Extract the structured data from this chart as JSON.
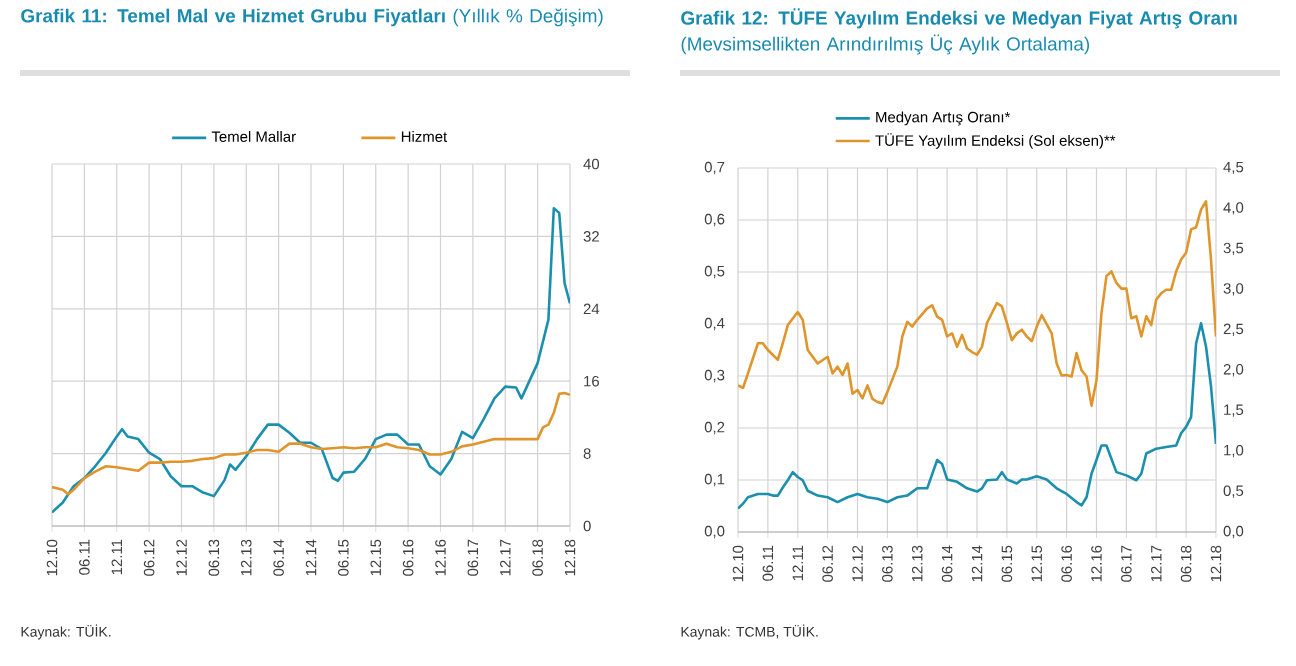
{
  "chart_data": [
    {
      "type": "line",
      "title": "**Grafik 11: Temel Mal ve Hizmet Grubu Fiyatları** (Yıllık % Değişim)",
      "legend": "top",
      "grid": true,
      "line_style": "solid",
      "xlim": [
        "2010-12",
        "2018-12"
      ],
      "xticks": [
        {
          "value": "2010-12",
          "label": "12.10"
        },
        {
          "value": "2011-06",
          "label": "06.11"
        },
        {
          "value": "2011-12",
          "label": "12.11"
        },
        {
          "value": "2012-06",
          "label": "06.12"
        },
        {
          "value": "2012-12",
          "label": "12.12"
        },
        {
          "value": "2013-06",
          "label": "06.13"
        },
        {
          "value": "2013-12",
          "label": "12.13"
        },
        {
          "value": "2014-06",
          "label": "06.14"
        },
        {
          "value": "2014-12",
          "label": "12.14"
        },
        {
          "value": "2015-06",
          "label": "06.15"
        },
        {
          "value": "2015-12",
          "label": "12.15"
        },
        {
          "value": "2016-06",
          "label": "06.16"
        },
        {
          "value": "2016-12",
          "label": "12.16"
        },
        {
          "value": "2017-06",
          "label": "06.17"
        },
        {
          "value": "2017-12",
          "label": "12.17"
        },
        {
          "value": "2018-06",
          "label": "06.18"
        },
        {
          "value": "2018-12",
          "label": "12.18"
        }
      ],
      "ylim": [
        0,
        40
      ],
      "yticks": [
        0,
        8,
        16,
        24,
        32,
        40
      ],
      "series": [
        {
          "name": "Temel Mallar",
          "color": "#1b8fae",
          "x": [
            "2010-12",
            "2011-02",
            "2011-04",
            "2011-06",
            "2011-08",
            "2011-10",
            "2011-12",
            "2012-01",
            "2012-02",
            "2012-04",
            "2012-06",
            "2012-08",
            "2012-10",
            "2012-12",
            "2013-02",
            "2013-04",
            "2013-06",
            "2013-08",
            "2013-09",
            "2013-10",
            "2013-12",
            "2014-02",
            "2014-04",
            "2014-06",
            "2014-08",
            "2014-10",
            "2014-12",
            "2015-02",
            "2015-04",
            "2015-05",
            "2015-06",
            "2015-08",
            "2015-10",
            "2015-12",
            "2016-02",
            "2016-04",
            "2016-06",
            "2016-08",
            "2016-10",
            "2016-12",
            "2017-02",
            "2017-04",
            "2017-06",
            "2017-08",
            "2017-10",
            "2017-12",
            "2018-02",
            "2018-03",
            "2018-04",
            "2018-06",
            "2018-08",
            "2018-09",
            "2018-10",
            "2018-11",
            "2018-12"
          ],
          "values": [
            1.5,
            2.6,
            4.4,
            5.3,
            6.6,
            8.1,
            9.9,
            10.7,
            9.9,
            9.6,
            8.1,
            7.4,
            5.5,
            4.4,
            4.4,
            3.7,
            3.3,
            5.1,
            6.8,
            6.2,
            7.7,
            9.6,
            11.2,
            11.2,
            10.3,
            9.2,
            9.2,
            8.5,
            5.3,
            5.0,
            5.9,
            6.0,
            7.4,
            9.6,
            10.1,
            10.1,
            9.0,
            9.0,
            6.6,
            5.7,
            7.4,
            10.4,
            9.7,
            11.8,
            14.1,
            15.4,
            15.3,
            14.1,
            15.4,
            18.0,
            22.8,
            35.1,
            34.6,
            26.8,
            24.6
          ]
        },
        {
          "name": "Hizmet",
          "color": "#e0952c",
          "x": [
            "2010-12",
            "2011-02",
            "2011-03",
            "2011-04",
            "2011-06",
            "2011-08",
            "2011-10",
            "2011-12",
            "2012-02",
            "2012-04",
            "2012-06",
            "2012-08",
            "2012-10",
            "2012-12",
            "2013-02",
            "2013-04",
            "2013-06",
            "2013-08",
            "2013-10",
            "2013-12",
            "2014-02",
            "2014-04",
            "2014-06",
            "2014-08",
            "2014-10",
            "2014-12",
            "2015-02",
            "2015-04",
            "2015-06",
            "2015-08",
            "2015-10",
            "2015-12",
            "2016-02",
            "2016-04",
            "2016-06",
            "2016-08",
            "2016-10",
            "2016-12",
            "2017-02",
            "2017-04",
            "2017-06",
            "2017-08",
            "2017-10",
            "2017-12",
            "2018-02",
            "2018-04",
            "2018-06",
            "2018-07",
            "2018-08",
            "2018-09",
            "2018-10",
            "2018-11",
            "2018-12"
          ],
          "values": [
            4.3,
            4.0,
            3.5,
            4.0,
            5.3,
            6.0,
            6.6,
            6.5,
            6.3,
            6.1,
            7.0,
            7.0,
            7.1,
            7.1,
            7.2,
            7.4,
            7.5,
            7.9,
            7.9,
            8.1,
            8.4,
            8.4,
            8.2,
            9.1,
            9.1,
            8.7,
            8.5,
            8.6,
            8.7,
            8.6,
            8.7,
            8.7,
            9.1,
            8.7,
            8.6,
            8.4,
            7.9,
            7.9,
            8.2,
            8.8,
            9.0,
            9.3,
            9.6,
            9.6,
            9.6,
            9.6,
            9.6,
            10.9,
            11.2,
            12.5,
            14.6,
            14.7,
            14.5
          ]
        }
      ],
      "annotations": [
        "Kaynak: TÜİK."
      ]
    },
    {
      "type": "line",
      "title": "**Grafik 12: TÜFE Yayılım Endeksi ve Medyan Fiyat Artış Oranı** (Mevsimsellikten Arındırılmış Üç Aylık Ortalama)",
      "legend": "top",
      "grid": true,
      "line_style": "solid",
      "xlim": [
        "2010-12",
        "2018-12"
      ],
      "xticks": [
        {
          "value": "2010-12",
          "label": "12.10"
        },
        {
          "value": "2011-06",
          "label": "06.11"
        },
        {
          "value": "2011-12",
          "label": "12.11"
        },
        {
          "value": "2012-06",
          "label": "06.12"
        },
        {
          "value": "2012-12",
          "label": "12.12"
        },
        {
          "value": "2013-06",
          "label": "06.13"
        },
        {
          "value": "2013-12",
          "label": "12.13"
        },
        {
          "value": "2014-06",
          "label": "06.14"
        },
        {
          "value": "2014-12",
          "label": "12.14"
        },
        {
          "value": "2015-06",
          "label": "06.15"
        },
        {
          "value": "2015-12",
          "label": "12.15"
        },
        {
          "value": "2016-06",
          "label": "06.16"
        },
        {
          "value": "2016-12",
          "label": "12.16"
        },
        {
          "value": "2017-06",
          "label": "06.17"
        },
        {
          "value": "2017-12",
          "label": "12.17"
        },
        {
          "value": "2018-06",
          "label": "06.18"
        },
        {
          "value": "2018-12",
          "label": "12.18"
        }
      ],
      "ylim": [
        0,
        0.7
      ],
      "yticks": [
        {
          "value": 0,
          "label": "0,0"
        },
        {
          "value": 0.1,
          "label": "0,1"
        },
        {
          "value": 0.2,
          "label": "0,2"
        },
        {
          "value": 0.3,
          "label": "0,3"
        },
        {
          "value": 0.4,
          "label": "0,4"
        },
        {
          "value": 0.5,
          "label": "0,5"
        },
        {
          "value": 0.6,
          "label": "0,6"
        },
        {
          "value": 0.7,
          "label": "0,7"
        }
      ],
      "y2lim": [
        0,
        4.5
      ],
      "y2ticks": [
        {
          "value": 0,
          "label": "0,0"
        },
        {
          "value": 0.5,
          "label": "0,5"
        },
        {
          "value": 1,
          "label": "1,0"
        },
        {
          "value": 1.5,
          "label": "1,5"
        },
        {
          "value": 2,
          "label": "2,0"
        },
        {
          "value": 2.5,
          "label": "2,5"
        },
        {
          "value": 3,
          "label": "3,0"
        },
        {
          "value": 3.5,
          "label": "3,5"
        },
        {
          "value": 4,
          "label": "4,0"
        },
        {
          "value": 4.5,
          "label": "4,5"
        }
      ],
      "series": [
        {
          "name": "Medyan Artış Oranı*",
          "color": "#1b8fae",
          "axis": "y2",
          "x": [
            "2010-12",
            "2011-01",
            "2011-02",
            "2011-04",
            "2011-06",
            "2011-07",
            "2011-08",
            "2011-09",
            "2011-10",
            "2011-11",
            "2011-12",
            "2012-01",
            "2012-02",
            "2012-04",
            "2012-06",
            "2012-08",
            "2012-10",
            "2012-12",
            "2013-02",
            "2013-04",
            "2013-06",
            "2013-08",
            "2013-10",
            "2013-12",
            "2014-02",
            "2014-04",
            "2014-05",
            "2014-06",
            "2014-08",
            "2014-10",
            "2014-12",
            "2015-01",
            "2015-02",
            "2015-04",
            "2015-05",
            "2015-06",
            "2015-08",
            "2015-09",
            "2015-10",
            "2015-12",
            "2016-02",
            "2016-04",
            "2016-06",
            "2016-08",
            "2016-09",
            "2016-10",
            "2016-11",
            "2016-12",
            "2017-01",
            "2017-02",
            "2017-04",
            "2017-06",
            "2017-08",
            "2017-09",
            "2017-10",
            "2017-12",
            "2018-02",
            "2018-04",
            "2018-05",
            "2018-06",
            "2018-07",
            "2018-08",
            "2018-09",
            "2018-10",
            "2018-11",
            "2018-12"
          ],
          "values": [
            0.29,
            0.35,
            0.43,
            0.47,
            0.47,
            0.45,
            0.45,
            0.55,
            0.64,
            0.74,
            0.68,
            0.64,
            0.51,
            0.45,
            0.43,
            0.37,
            0.43,
            0.47,
            0.43,
            0.41,
            0.37,
            0.43,
            0.45,
            0.54,
            0.54,
            0.89,
            0.84,
            0.65,
            0.62,
            0.54,
            0.5,
            0.54,
            0.64,
            0.65,
            0.74,
            0.65,
            0.6,
            0.65,
            0.65,
            0.69,
            0.65,
            0.54,
            0.47,
            0.37,
            0.33,
            0.43,
            0.72,
            0.89,
            1.07,
            1.07,
            0.74,
            0.7,
            0.64,
            0.72,
            0.97,
            1.03,
            1.05,
            1.07,
            1.22,
            1.3,
            1.42,
            2.33,
            2.58,
            2.29,
            1.8,
            1.09
          ]
        },
        {
          "name": "TÜFE Yayılım Endeksi (Sol eksen)**",
          "color": "#e0952c",
          "x": [
            "2010-12",
            "2011-01",
            "2011-02",
            "2011-04",
            "2011-05",
            "2011-06",
            "2011-08",
            "2011-09",
            "2011-10",
            "2011-12",
            "2012-01",
            "2012-02",
            "2012-04",
            "2012-06",
            "2012-07",
            "2012-08",
            "2012-09",
            "2012-10",
            "2012-11",
            "2012-12",
            "2013-01",
            "2013-02",
            "2013-03",
            "2013-04",
            "2013-05",
            "2013-06",
            "2013-08",
            "2013-09",
            "2013-10",
            "2013-11",
            "2013-12",
            "2014-02",
            "2014-03",
            "2014-04",
            "2014-05",
            "2014-06",
            "2014-07",
            "2014-08",
            "2014-09",
            "2014-10",
            "2014-11",
            "2014-12",
            "2015-01",
            "2015-02",
            "2015-04",
            "2015-05",
            "2015-06",
            "2015-07",
            "2015-08",
            "2015-09",
            "2015-10",
            "2015-11",
            "2015-12",
            "2016-01",
            "2016-03",
            "2016-04",
            "2016-05",
            "2016-06",
            "2016-07",
            "2016-08",
            "2016-09",
            "2016-10",
            "2016-11",
            "2016-12",
            "2017-01",
            "2017-02",
            "2017-03",
            "2017-04",
            "2017-05",
            "2017-06",
            "2017-07",
            "2017-08",
            "2017-09",
            "2017-10",
            "2017-11",
            "2017-12",
            "2018-01",
            "2018-02",
            "2018-03",
            "2018-04",
            "2018-05",
            "2018-06",
            "2018-07",
            "2018-08",
            "2018-09",
            "2018-10",
            "2018-11",
            "2018-12"
          ],
          "values": [
            0.282,
            0.277,
            0.305,
            0.363,
            0.363,
            0.35,
            0.331,
            0.363,
            0.398,
            0.423,
            0.408,
            0.35,
            0.324,
            0.337,
            0.305,
            0.318,
            0.302,
            0.324,
            0.266,
            0.273,
            0.257,
            0.282,
            0.256,
            0.25,
            0.247,
            0.269,
            0.318,
            0.376,
            0.404,
            0.395,
            0.408,
            0.43,
            0.436,
            0.414,
            0.408,
            0.376,
            0.382,
            0.356,
            0.379,
            0.353,
            0.346,
            0.341,
            0.356,
            0.402,
            0.44,
            0.434,
            0.402,
            0.369,
            0.382,
            0.389,
            0.376,
            0.367,
            0.395,
            0.417,
            0.382,
            0.324,
            0.301,
            0.302,
            0.299,
            0.344,
            0.311,
            0.299,
            0.243,
            0.292,
            0.421,
            0.492,
            0.501,
            0.479,
            0.468,
            0.468,
            0.411,
            0.415,
            0.376,
            0.415,
            0.398,
            0.447,
            0.459,
            0.466,
            0.466,
            0.501,
            0.524,
            0.537,
            0.582,
            0.586,
            0.62,
            0.636,
            0.524,
            0.376
          ]
        }
      ],
      "annotations": [
        "Kaynak: TCMB, TÜİK."
      ]
    }
  ]
}
